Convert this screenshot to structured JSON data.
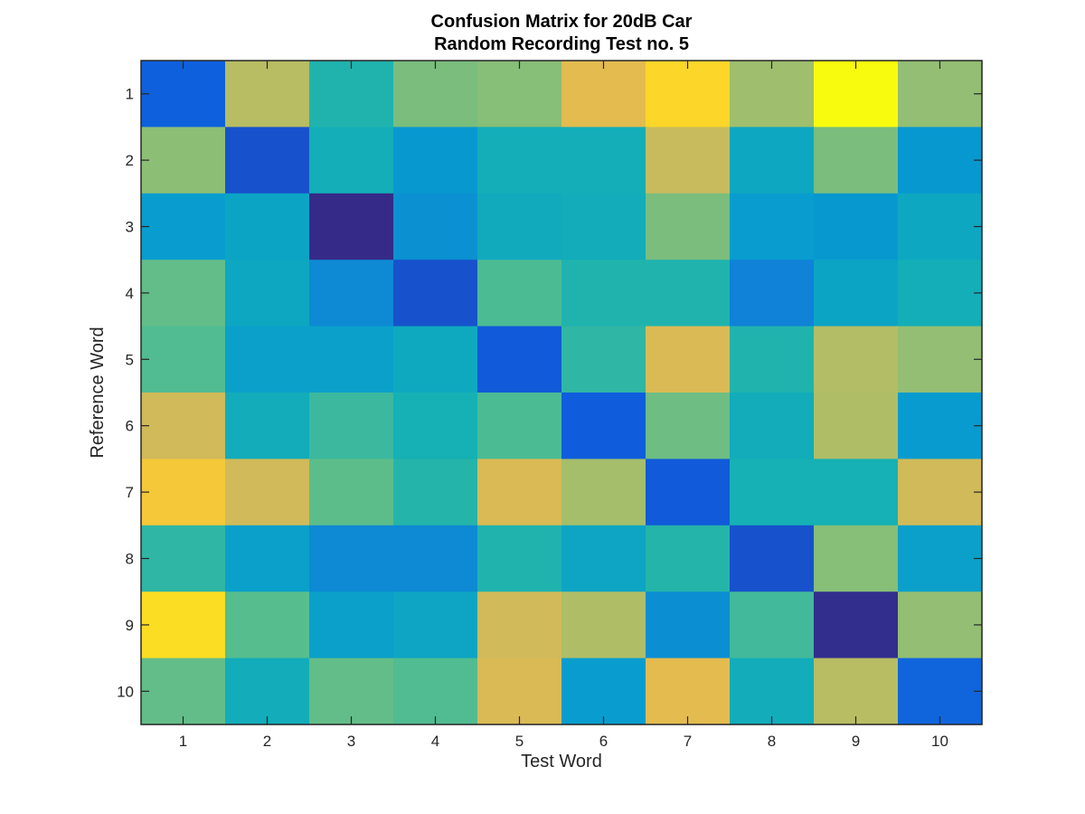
{
  "chart_data": {
    "type": "heatmap",
    "title_lines": [
      "Confusion Matrix for 20dB Car",
      "Random Recording Test no. 5"
    ],
    "xlabel": "Test Word",
    "ylabel": "Reference Word",
    "x_categories": [
      "1",
      "2",
      "3",
      "4",
      "5",
      "6",
      "7",
      "8",
      "9",
      "10"
    ],
    "y_categories": [
      "1",
      "2",
      "3",
      "4",
      "5",
      "6",
      "7",
      "8",
      "9",
      "10"
    ],
    "colormap": "parula",
    "value_range": [
      0,
      1
    ],
    "values": [
      [
        0.14,
        0.79,
        0.52,
        0.68,
        0.7,
        0.88,
        0.95,
        0.74,
        1.0,
        0.72
      ],
      [
        0.71,
        0.1,
        0.48,
        0.36,
        0.48,
        0.48,
        0.82,
        0.44,
        0.68,
        0.36
      ],
      [
        0.38,
        0.42,
        0.0,
        0.33,
        0.46,
        0.47,
        0.68,
        0.38,
        0.36,
        0.44
      ],
      [
        0.64,
        0.44,
        0.3,
        0.1,
        0.6,
        0.52,
        0.52,
        0.27,
        0.42,
        0.48
      ],
      [
        0.61,
        0.4,
        0.4,
        0.45,
        0.12,
        0.55,
        0.86,
        0.52,
        0.78,
        0.72
      ],
      [
        0.84,
        0.47,
        0.57,
        0.5,
        0.6,
        0.13,
        0.66,
        0.47,
        0.77,
        0.37
      ],
      [
        0.92,
        0.84,
        0.63,
        0.53,
        0.86,
        0.75,
        0.12,
        0.5,
        0.5,
        0.84
      ],
      [
        0.55,
        0.4,
        0.3,
        0.3,
        0.52,
        0.43,
        0.53,
        0.1,
        0.7,
        0.4
      ],
      [
        0.96,
        0.62,
        0.4,
        0.43,
        0.84,
        0.77,
        0.32,
        0.58,
        0.01,
        0.72
      ],
      [
        0.64,
        0.47,
        0.64,
        0.61,
        0.86,
        0.38,
        0.88,
        0.47,
        0.79,
        0.16
      ]
    ],
    "grid": false,
    "box": true
  }
}
